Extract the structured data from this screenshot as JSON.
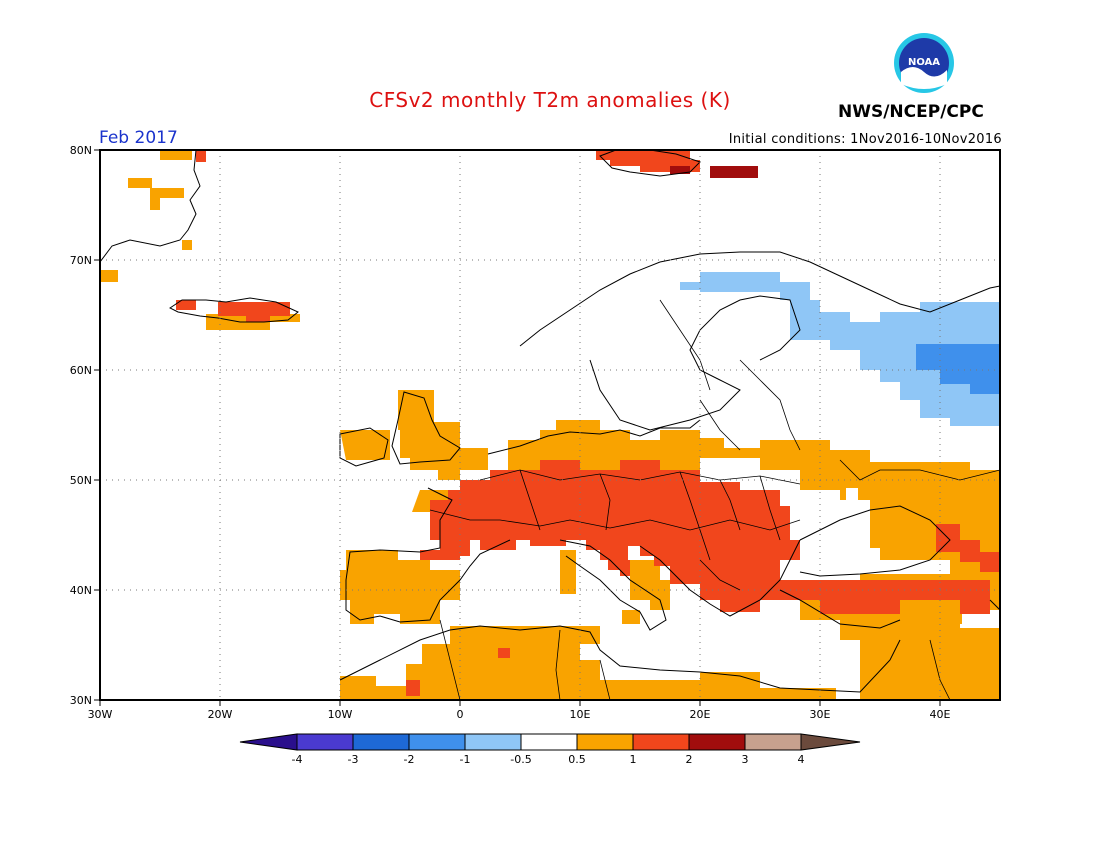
{
  "header": {
    "title": "CFSv2 monthly T2m anomalies (K)",
    "valid_month": "Feb 2017",
    "agency": "NWS/NCEP/CPC",
    "initial_conditions": "Initial conditions: 1Nov2016-10Nov2016",
    "logo_text": "NOAA"
  },
  "colors": {
    "title": "#dd1111",
    "month": "#1a33cc",
    "anom_lt_m4": "#2a0f8c",
    "anom_m4_m3": "#4a3ad0",
    "anom_m3_m2": "#1e69d6",
    "anom_m2_m1": "#3f90ec",
    "anom_m1_m05": "#8fc6f6",
    "anom_m05_05": "#ffffff",
    "anom_05_1": "#f9a300",
    "anom_1_2": "#f1461c",
    "anom_2_3": "#a10d0d",
    "anom_3_4": "#c7a18e",
    "anom_gt_4": "#6b4a3c"
  },
  "map": {
    "lon_range": [
      -30,
      45
    ],
    "lat_range": [
      30,
      80
    ],
    "lat_labels": [
      "80N",
      "70N",
      "60N",
      "50N",
      "40N",
      "30N"
    ],
    "lon_labels": [
      "30W",
      "20W",
      "10W",
      "0",
      "10E",
      "20E",
      "30E",
      "40E"
    ]
  },
  "colorbar": {
    "labels": [
      "-4",
      "-3",
      "-2",
      "-1",
      "-0.5",
      "0.5",
      "1",
      "2",
      "3",
      "4"
    ]
  }
}
